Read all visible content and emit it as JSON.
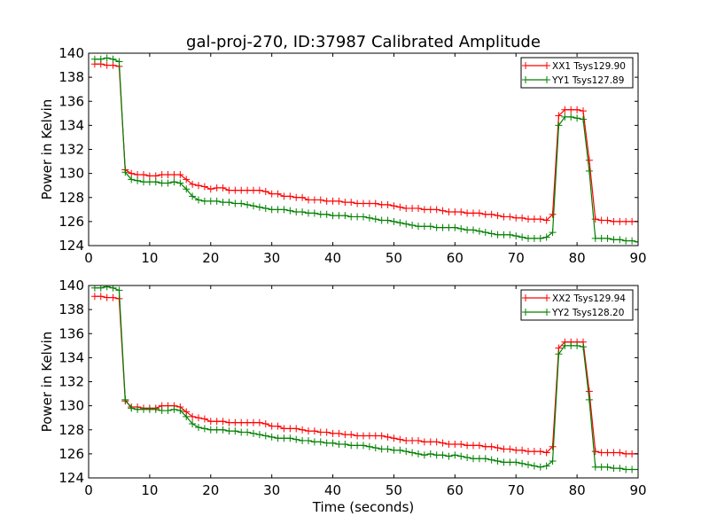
{
  "title": "gal-proj-270, ID:37987 Calibrated Amplitude",
  "colors": {
    "xx": "#ff0000",
    "yy": "#008000",
    "axes": "#000000",
    "background": "#ffffff"
  },
  "chart_data": [
    {
      "type": "line",
      "title": "gal-proj-270, ID:37987 Calibrated Amplitude",
      "xlabel": "",
      "ylabel": "Power in Kelvin",
      "xlim": [
        0,
        90
      ],
      "ylim": [
        124,
        140
      ],
      "xticks": [
        "0",
        "10",
        "20",
        "30",
        "40",
        "50",
        "60",
        "70",
        "80",
        "90"
      ],
      "yticks": [
        "124",
        "126",
        "128",
        "130",
        "132",
        "134",
        "136",
        "138",
        "140"
      ],
      "grid": false,
      "legend_position": "top-right",
      "marker": "+",
      "series": [
        {
          "name": "XX1 Tsys129.90",
          "color": "#ff0000",
          "x": [
            1,
            2,
            3,
            4,
            5,
            6,
            7,
            8,
            9,
            10,
            11,
            12,
            13,
            14,
            15,
            16,
            17,
            18,
            19,
            20,
            21,
            22,
            23,
            24,
            25,
            26,
            27,
            28,
            29,
            30,
            31,
            32,
            33,
            34,
            35,
            36,
            37,
            38,
            39,
            40,
            41,
            42,
            43,
            44,
            45,
            46,
            47,
            48,
            49,
            50,
            51,
            52,
            53,
            54,
            55,
            56,
            57,
            58,
            59,
            60,
            61,
            62,
            63,
            64,
            65,
            66,
            67,
            68,
            69,
            70,
            71,
            72,
            73,
            74,
            75,
            76,
            77,
            78,
            79,
            80,
            81,
            82,
            83,
            84,
            85,
            86,
            87,
            88,
            89,
            90
          ],
          "y": [
            139.1,
            139.1,
            139.0,
            139.0,
            138.9,
            130.3,
            130.0,
            129.9,
            129.9,
            129.8,
            129.8,
            129.9,
            129.9,
            129.9,
            129.9,
            129.5,
            129.1,
            129.0,
            128.9,
            128.7,
            128.8,
            128.8,
            128.6,
            128.6,
            128.6,
            128.6,
            128.6,
            128.6,
            128.5,
            128.3,
            128.3,
            128.1,
            128.1,
            128.0,
            128.0,
            127.8,
            127.8,
            127.8,
            127.7,
            127.7,
            127.7,
            127.6,
            127.6,
            127.5,
            127.5,
            127.5,
            127.5,
            127.4,
            127.4,
            127.3,
            127.2,
            127.1,
            127.1,
            127.1,
            127.0,
            127.0,
            127.0,
            126.9,
            126.8,
            126.8,
            126.8,
            126.7,
            126.7,
            126.7,
            126.6,
            126.6,
            126.5,
            126.4,
            126.4,
            126.3,
            126.3,
            126.2,
            126.2,
            126.2,
            126.1,
            126.6,
            134.8,
            135.3,
            135.3,
            135.3,
            135.2,
            131.1,
            126.2,
            126.1,
            126.1,
            126.0,
            126.0,
            126.0,
            126.0,
            126.0
          ]
        },
        {
          "name": "YY1 Tsys127.89",
          "color": "#008000",
          "x": [
            1,
            2,
            3,
            4,
            5,
            6,
            7,
            8,
            9,
            10,
            11,
            12,
            13,
            14,
            15,
            16,
            17,
            18,
            19,
            20,
            21,
            22,
            23,
            24,
            25,
            26,
            27,
            28,
            29,
            30,
            31,
            32,
            33,
            34,
            35,
            36,
            37,
            38,
            39,
            40,
            41,
            42,
            43,
            44,
            45,
            46,
            47,
            48,
            49,
            50,
            51,
            52,
            53,
            54,
            55,
            56,
            57,
            58,
            59,
            60,
            61,
            62,
            63,
            64,
            65,
            66,
            67,
            68,
            69,
            70,
            71,
            72,
            73,
            74,
            75,
            76,
            77,
            78,
            79,
            80,
            81,
            82,
            83,
            84,
            85,
            86,
            87,
            88,
            89,
            90
          ],
          "y": [
            139.5,
            139.5,
            139.6,
            139.5,
            139.3,
            130.1,
            129.5,
            129.4,
            129.3,
            129.3,
            129.3,
            129.2,
            129.2,
            129.3,
            129.2,
            128.7,
            128.1,
            127.8,
            127.7,
            127.7,
            127.7,
            127.6,
            127.6,
            127.5,
            127.5,
            127.4,
            127.3,
            127.2,
            127.1,
            127.0,
            127.0,
            127.0,
            126.9,
            126.8,
            126.8,
            126.7,
            126.7,
            126.6,
            126.6,
            126.5,
            126.5,
            126.5,
            126.4,
            126.4,
            126.4,
            126.3,
            126.2,
            126.1,
            126.1,
            126.0,
            125.9,
            125.8,
            125.7,
            125.6,
            125.6,
            125.6,
            125.5,
            125.5,
            125.5,
            125.5,
            125.4,
            125.3,
            125.3,
            125.2,
            125.1,
            125.0,
            124.9,
            124.9,
            124.9,
            124.8,
            124.7,
            124.6,
            124.6,
            124.6,
            124.7,
            125.1,
            134.0,
            134.7,
            134.7,
            134.6,
            134.5,
            130.2,
            124.6,
            124.6,
            124.6,
            124.5,
            124.5,
            124.4,
            124.4,
            124.3
          ]
        }
      ]
    },
    {
      "type": "line",
      "title": "",
      "xlabel": "Time (seconds)",
      "ylabel": "Power in Kelvin",
      "xlim": [
        0,
        90
      ],
      "ylim": [
        124,
        140
      ],
      "xticks": [
        "0",
        "10",
        "20",
        "30",
        "40",
        "50",
        "60",
        "70",
        "80",
        "90"
      ],
      "yticks": [
        "124",
        "126",
        "128",
        "130",
        "132",
        "134",
        "136",
        "138",
        "140"
      ],
      "grid": false,
      "legend_position": "top-right",
      "marker": "+",
      "series": [
        {
          "name": "XX2 Tsys129.94",
          "color": "#ff0000",
          "x": [
            1,
            2,
            3,
            4,
            5,
            6,
            7,
            8,
            9,
            10,
            11,
            12,
            13,
            14,
            15,
            16,
            17,
            18,
            19,
            20,
            21,
            22,
            23,
            24,
            25,
            26,
            27,
            28,
            29,
            30,
            31,
            32,
            33,
            34,
            35,
            36,
            37,
            38,
            39,
            40,
            41,
            42,
            43,
            44,
            45,
            46,
            47,
            48,
            49,
            50,
            51,
            52,
            53,
            54,
            55,
            56,
            57,
            58,
            59,
            60,
            61,
            62,
            63,
            64,
            65,
            66,
            67,
            68,
            69,
            70,
            71,
            72,
            73,
            74,
            75,
            76,
            77,
            78,
            79,
            80,
            81,
            82,
            83,
            84,
            85,
            86,
            87,
            88,
            89,
            90
          ],
          "y": [
            139.1,
            139.1,
            139.0,
            139.0,
            138.9,
            130.4,
            129.9,
            129.9,
            129.8,
            129.8,
            129.8,
            130.0,
            130.0,
            130.0,
            129.9,
            129.5,
            129.1,
            129.0,
            128.9,
            128.7,
            128.7,
            128.7,
            128.6,
            128.6,
            128.6,
            128.6,
            128.6,
            128.6,
            128.5,
            128.3,
            128.3,
            128.1,
            128.1,
            128.1,
            128.0,
            127.9,
            127.9,
            127.8,
            127.8,
            127.7,
            127.7,
            127.6,
            127.6,
            127.5,
            127.5,
            127.5,
            127.5,
            127.5,
            127.4,
            127.3,
            127.2,
            127.1,
            127.1,
            127.1,
            127.0,
            127.0,
            127.0,
            126.9,
            126.8,
            126.8,
            126.8,
            126.7,
            126.7,
            126.7,
            126.6,
            126.6,
            126.5,
            126.4,
            126.4,
            126.3,
            126.3,
            126.2,
            126.2,
            126.2,
            126.1,
            126.6,
            134.8,
            135.3,
            135.3,
            135.3,
            135.3,
            131.2,
            126.2,
            126.1,
            126.1,
            126.1,
            126.1,
            126.0,
            126.0,
            126.0
          ]
        },
        {
          "name": "YY2 Tsys128.20",
          "color": "#008000",
          "x": [
            1,
            2,
            3,
            4,
            5,
            6,
            7,
            8,
            9,
            10,
            11,
            12,
            13,
            14,
            15,
            16,
            17,
            18,
            19,
            20,
            21,
            22,
            23,
            24,
            25,
            26,
            27,
            28,
            29,
            30,
            31,
            32,
            33,
            34,
            35,
            36,
            37,
            38,
            39,
            40,
            41,
            42,
            43,
            44,
            45,
            46,
            47,
            48,
            49,
            50,
            51,
            52,
            53,
            54,
            55,
            56,
            57,
            58,
            59,
            60,
            61,
            62,
            63,
            64,
            65,
            66,
            67,
            68,
            69,
            70,
            71,
            72,
            73,
            74,
            75,
            76,
            77,
            78,
            79,
            80,
            81,
            82,
            83,
            84,
            85,
            86,
            87,
            88,
            89,
            90
          ],
          "y": [
            139.8,
            139.8,
            139.9,
            139.8,
            139.6,
            130.5,
            129.8,
            129.7,
            129.7,
            129.7,
            129.7,
            129.6,
            129.6,
            129.7,
            129.6,
            129.1,
            128.5,
            128.2,
            128.1,
            128.0,
            128.0,
            128.0,
            127.9,
            127.9,
            127.8,
            127.8,
            127.7,
            127.6,
            127.5,
            127.4,
            127.3,
            127.3,
            127.3,
            127.2,
            127.1,
            127.1,
            127.0,
            127.0,
            126.9,
            126.9,
            126.8,
            126.8,
            126.7,
            126.7,
            126.7,
            126.6,
            126.5,
            126.4,
            126.4,
            126.3,
            126.3,
            126.2,
            126.1,
            126.0,
            125.9,
            126.0,
            125.9,
            125.9,
            125.8,
            125.9,
            125.8,
            125.7,
            125.6,
            125.6,
            125.6,
            125.5,
            125.4,
            125.3,
            125.3,
            125.3,
            125.2,
            125.1,
            125.0,
            124.9,
            125.0,
            125.4,
            134.3,
            135.0,
            135.0,
            135.0,
            134.9,
            130.5,
            124.9,
            124.9,
            124.9,
            124.8,
            124.8,
            124.7,
            124.7,
            124.7
          ]
        }
      ]
    }
  ]
}
